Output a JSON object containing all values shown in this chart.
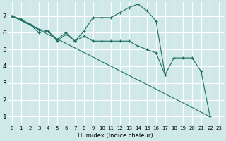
{
  "background_color": "#cfe8e8",
  "grid_color": "#d8eded",
  "line_color": "#1e6e64",
  "xlabel": "Humidex (Indice chaleur)",
  "xlim": [
    -0.5,
    23.5
  ],
  "ylim": [
    0.5,
    7.8
  ],
  "xticks": [
    0,
    1,
    2,
    3,
    4,
    5,
    6,
    7,
    8,
    9,
    10,
    11,
    12,
    13,
    14,
    15,
    16,
    17,
    18,
    19,
    20,
    21,
    22,
    23
  ],
  "yticks": [
    1,
    2,
    3,
    4,
    5,
    6,
    7
  ],
  "series": [
    {
      "x": [
        0,
        1,
        2,
        3,
        4,
        5,
        6,
        7,
        8,
        9,
        10,
        11,
        12,
        13,
        14,
        15,
        16,
        17,
        18,
        19,
        20,
        21,
        22
      ],
      "y": [
        7.0,
        6.72,
        6.45,
        6.18,
        5.9,
        5.63,
        5.36,
        5.09,
        4.82,
        4.55,
        4.27,
        4.0,
        3.73,
        3.45,
        3.18,
        2.91,
        2.64,
        2.36,
        2.09,
        1.82,
        1.55,
        1.27,
        1.0
      ],
      "marker": null
    },
    {
      "x": [
        0,
        1,
        2,
        3,
        4,
        5,
        6,
        7,
        8,
        9,
        10,
        11,
        12,
        13,
        14,
        15,
        16,
        17
      ],
      "y": [
        7.0,
        6.8,
        6.5,
        6.2,
        6.1,
        5.6,
        6.0,
        5.5,
        6.1,
        6.9,
        6.9,
        6.9,
        7.2,
        7.5,
        7.7,
        7.3,
        6.7,
        3.5
      ],
      "marker": "+"
    },
    {
      "x": [
        0,
        2,
        3,
        4,
        5,
        6,
        7,
        8,
        9,
        10,
        11,
        12,
        13,
        14,
        15,
        16,
        17,
        18,
        19,
        20,
        21,
        22
      ],
      "y": [
        7.0,
        6.5,
        6.0,
        6.1,
        5.5,
        5.9,
        5.5,
        5.8,
        5.5,
        5.5,
        5.5,
        5.5,
        5.5,
        5.2,
        5.0,
        4.8,
        3.5,
        4.5,
        4.5,
        4.5,
        3.7,
        1.0
      ],
      "marker": "+"
    }
  ]
}
